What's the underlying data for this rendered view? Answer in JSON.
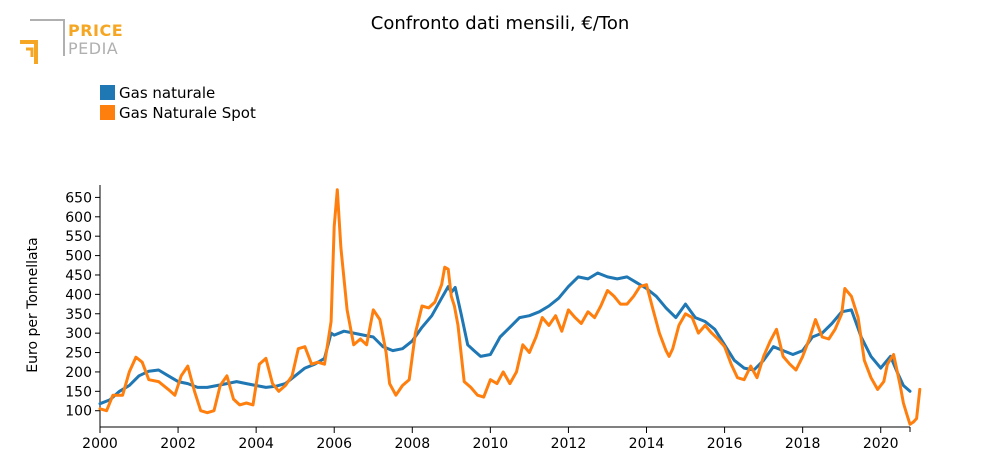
{
  "brand": {
    "line1": "PRICE",
    "line2": "PEDIA",
    "accent": "#f5a623",
    "muted": "#b0b0b0"
  },
  "chart_data": {
    "type": "line",
    "title": "Confronto dati mensili, €/Ton",
    "xlabel": "",
    "ylabel": "Euro per Tonnellata",
    "xlim": [
      2000,
      2020.75
    ],
    "ylim": [
      58,
      682
    ],
    "x_ticks": [
      "2000",
      "2002",
      "2004",
      "2006",
      "2008",
      "2010",
      "2012",
      "2014",
      "2016",
      "2018",
      "2020"
    ],
    "y_ticks": [
      "100",
      "150",
      "200",
      "250",
      "300",
      "350",
      "400",
      "450",
      "500",
      "550",
      "600",
      "650"
    ],
    "legend_position": "top-left",
    "grid": false,
    "series": [
      {
        "name": "Gas naturale",
        "color": "#1f77b4",
        "points": [
          [
            2000.0,
            118
          ],
          [
            2000.25,
            128
          ],
          [
            2000.5,
            150
          ],
          [
            2000.75,
            165
          ],
          [
            2001.0,
            190
          ],
          [
            2001.25,
            202
          ],
          [
            2001.5,
            205
          ],
          [
            2001.75,
            190
          ],
          [
            2002.0,
            175
          ],
          [
            2002.25,
            170
          ],
          [
            2002.5,
            160
          ],
          [
            2002.75,
            160
          ],
          [
            2003.0,
            165
          ],
          [
            2003.25,
            170
          ],
          [
            2003.5,
            175
          ],
          [
            2003.75,
            170
          ],
          [
            2004.0,
            165
          ],
          [
            2004.25,
            160
          ],
          [
            2004.5,
            163
          ],
          [
            2004.75,
            170
          ],
          [
            2005.0,
            190
          ],
          [
            2005.25,
            210
          ],
          [
            2005.5,
            220
          ],
          [
            2005.75,
            235
          ],
          [
            2005.92,
            300
          ],
          [
            2006.0,
            295
          ],
          [
            2006.25,
            305
          ],
          [
            2006.5,
            300
          ],
          [
            2006.75,
            295
          ],
          [
            2007.0,
            290
          ],
          [
            2007.25,
            265
          ],
          [
            2007.5,
            255
          ],
          [
            2007.75,
            260
          ],
          [
            2008.0,
            280
          ],
          [
            2008.25,
            315
          ],
          [
            2008.5,
            345
          ],
          [
            2008.75,
            390
          ],
          [
            2008.92,
            420
          ],
          [
            2009.0,
            405
          ],
          [
            2009.1,
            418
          ],
          [
            2009.25,
            350
          ],
          [
            2009.42,
            270
          ],
          [
            2009.58,
            255
          ],
          [
            2009.75,
            240
          ],
          [
            2010.0,
            245
          ],
          [
            2010.25,
            290
          ],
          [
            2010.5,
            315
          ],
          [
            2010.75,
            340
          ],
          [
            2011.0,
            345
          ],
          [
            2011.25,
            355
          ],
          [
            2011.5,
            370
          ],
          [
            2011.75,
            390
          ],
          [
            2012.0,
            420
          ],
          [
            2012.25,
            445
          ],
          [
            2012.5,
            440
          ],
          [
            2012.75,
            455
          ],
          [
            2013.0,
            445
          ],
          [
            2013.25,
            440
          ],
          [
            2013.5,
            445
          ],
          [
            2013.75,
            430
          ],
          [
            2014.0,
            415
          ],
          [
            2014.25,
            395
          ],
          [
            2014.5,
            365
          ],
          [
            2014.75,
            340
          ],
          [
            2015.0,
            375
          ],
          [
            2015.25,
            340
          ],
          [
            2015.5,
            330
          ],
          [
            2015.75,
            310
          ],
          [
            2016.0,
            270
          ],
          [
            2016.25,
            230
          ],
          [
            2016.5,
            210
          ],
          [
            2016.75,
            205
          ],
          [
            2017.0,
            230
          ],
          [
            2017.25,
            265
          ],
          [
            2017.5,
            255
          ],
          [
            2017.75,
            245
          ],
          [
            2018.0,
            255
          ],
          [
            2018.25,
            290
          ],
          [
            2018.5,
            300
          ],
          [
            2018.75,
            325
          ],
          [
            2019.0,
            355
          ],
          [
            2019.25,
            360
          ],
          [
            2019.5,
            290
          ],
          [
            2019.75,
            240
          ],
          [
            2020.0,
            210
          ],
          [
            2020.25,
            240
          ],
          [
            2020.42,
            200
          ],
          [
            2020.58,
            165
          ],
          [
            2020.75,
            150
          ]
        ]
      },
      {
        "name": "Gas Naturale Spot",
        "color": "#ff7f0e",
        "points": [
          [
            2000.0,
            105
          ],
          [
            2000.17,
            100
          ],
          [
            2000.33,
            140
          ],
          [
            2000.58,
            140
          ],
          [
            2000.75,
            200
          ],
          [
            2000.92,
            238
          ],
          [
            2001.08,
            225
          ],
          [
            2001.25,
            180
          ],
          [
            2001.5,
            175
          ],
          [
            2001.75,
            155
          ],
          [
            2001.92,
            140
          ],
          [
            2002.08,
            190
          ],
          [
            2002.25,
            215
          ],
          [
            2002.42,
            150
          ],
          [
            2002.58,
            100
          ],
          [
            2002.75,
            95
          ],
          [
            2002.92,
            100
          ],
          [
            2003.08,
            165
          ],
          [
            2003.25,
            190
          ],
          [
            2003.42,
            130
          ],
          [
            2003.58,
            115
          ],
          [
            2003.75,
            120
          ],
          [
            2003.92,
            115
          ],
          [
            2004.08,
            220
          ],
          [
            2004.25,
            235
          ],
          [
            2004.42,
            170
          ],
          [
            2004.58,
            150
          ],
          [
            2004.75,
            165
          ],
          [
            2004.92,
            190
          ],
          [
            2005.08,
            260
          ],
          [
            2005.25,
            265
          ],
          [
            2005.42,
            220
          ],
          [
            2005.58,
            225
          ],
          [
            2005.75,
            220
          ],
          [
            2005.92,
            330
          ],
          [
            2006.0,
            575
          ],
          [
            2006.08,
            670
          ],
          [
            2006.17,
            520
          ],
          [
            2006.33,
            360
          ],
          [
            2006.5,
            270
          ],
          [
            2006.67,
            285
          ],
          [
            2006.83,
            270
          ],
          [
            2007.0,
            360
          ],
          [
            2007.17,
            335
          ],
          [
            2007.33,
            250
          ],
          [
            2007.42,
            170
          ],
          [
            2007.58,
            140
          ],
          [
            2007.75,
            165
          ],
          [
            2007.92,
            180
          ],
          [
            2008.08,
            300
          ],
          [
            2008.25,
            370
          ],
          [
            2008.42,
            365
          ],
          [
            2008.58,
            380
          ],
          [
            2008.75,
            425
          ],
          [
            2008.83,
            470
          ],
          [
            2008.92,
            465
          ],
          [
            2009.0,
            395
          ],
          [
            2009.08,
            370
          ],
          [
            2009.17,
            320
          ],
          [
            2009.33,
            175
          ],
          [
            2009.5,
            160
          ],
          [
            2009.67,
            140
          ],
          [
            2009.83,
            135
          ],
          [
            2010.0,
            180
          ],
          [
            2010.17,
            170
          ],
          [
            2010.33,
            200
          ],
          [
            2010.5,
            170
          ],
          [
            2010.67,
            200
          ],
          [
            2010.83,
            270
          ],
          [
            2011.0,
            250
          ],
          [
            2011.17,
            290
          ],
          [
            2011.33,
            340
          ],
          [
            2011.5,
            320
          ],
          [
            2011.67,
            345
          ],
          [
            2011.83,
            305
          ],
          [
            2012.0,
            360
          ],
          [
            2012.17,
            340
          ],
          [
            2012.33,
            325
          ],
          [
            2012.5,
            355
          ],
          [
            2012.67,
            340
          ],
          [
            2012.83,
            370
          ],
          [
            2013.0,
            410
          ],
          [
            2013.17,
            395
          ],
          [
            2013.33,
            375
          ],
          [
            2013.5,
            375
          ],
          [
            2013.67,
            395
          ],
          [
            2013.83,
            420
          ],
          [
            2014.0,
            425
          ],
          [
            2014.17,
            360
          ],
          [
            2014.33,
            300
          ],
          [
            2014.5,
            255
          ],
          [
            2014.58,
            240
          ],
          [
            2014.67,
            260
          ],
          [
            2014.83,
            320
          ],
          [
            2015.0,
            350
          ],
          [
            2015.17,
            340
          ],
          [
            2015.33,
            300
          ],
          [
            2015.5,
            320
          ],
          [
            2015.67,
            300
          ],
          [
            2015.83,
            285
          ],
          [
            2016.0,
            265
          ],
          [
            2016.17,
            220
          ],
          [
            2016.33,
            185
          ],
          [
            2016.5,
            180
          ],
          [
            2016.67,
            215
          ],
          [
            2016.83,
            185
          ],
          [
            2017.0,
            240
          ],
          [
            2017.17,
            280
          ],
          [
            2017.33,
            310
          ],
          [
            2017.5,
            240
          ],
          [
            2017.67,
            220
          ],
          [
            2017.83,
            205
          ],
          [
            2018.0,
            240
          ],
          [
            2018.17,
            285
          ],
          [
            2018.33,
            335
          ],
          [
            2018.5,
            290
          ],
          [
            2018.67,
            285
          ],
          [
            2018.83,
            310
          ],
          [
            2019.0,
            350
          ],
          [
            2019.08,
            415
          ],
          [
            2019.25,
            395
          ],
          [
            2019.42,
            340
          ],
          [
            2019.58,
            230
          ],
          [
            2019.75,
            185
          ],
          [
            2019.92,
            155
          ],
          [
            2020.08,
            175
          ],
          [
            2020.17,
            220
          ],
          [
            2020.33,
            245
          ],
          [
            2020.5,
            165
          ],
          [
            2020.58,
            120
          ],
          [
            2020.67,
            90
          ],
          [
            2020.75,
            65
          ],
          [
            2020.83,
            70
          ],
          [
            2020.92,
            80
          ],
          [
            2021.0,
            155
          ]
        ]
      }
    ]
  }
}
